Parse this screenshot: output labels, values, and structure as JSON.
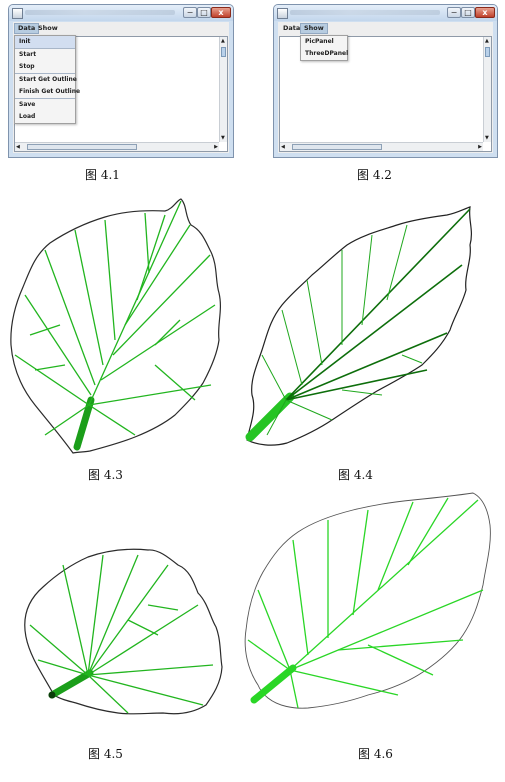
{
  "fig1": {
    "menu": [
      "Data",
      "Show"
    ],
    "dropdown_items": [
      "Init",
      "Start",
      "Stop",
      "Start Get Outline",
      "Finish Get Outline",
      "Save",
      "Load"
    ],
    "window_controls": {
      "minimize": "−",
      "maximize": "□",
      "close": "x"
    }
  },
  "fig2": {
    "menu": [
      "Data",
      "Show"
    ],
    "dropdown_items": [
      "PicPanel",
      "ThreeDPanel"
    ],
    "window_controls": {
      "minimize": "−",
      "maximize": "□",
      "close": "x"
    }
  },
  "captions": [
    "图 4.1",
    "图 4.2",
    "图 4.3",
    "图 4.4",
    "图 4.5",
    "图 4.6"
  ],
  "colors": {
    "vein": "#22b51f",
    "vein_dark": "#0d6e0b",
    "outline": "#2b2b2b",
    "window_frame": "#cfdff0",
    "close_button": "#c0412c"
  },
  "icons": [
    "app-icon",
    "minimize-icon",
    "maximize-icon",
    "close-icon",
    "scroll-up-arrow-icon",
    "scroll-down-arrow-icon",
    "scroll-left-arrow-icon",
    "scroll-right-arrow-icon"
  ]
}
